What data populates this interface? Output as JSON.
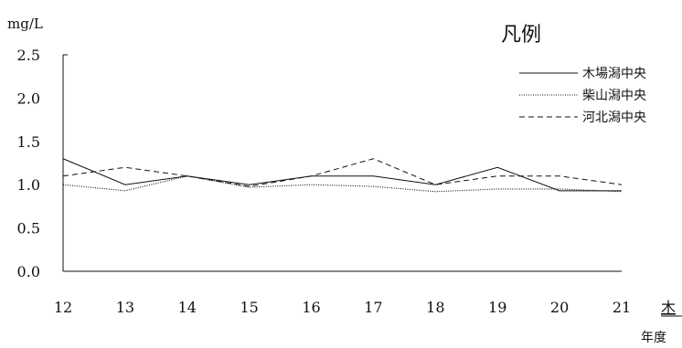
{
  "chart_data": {
    "type": "line",
    "title": "",
    "xlabel": "年度",
    "ylabel": "mg/L",
    "x": [
      12,
      13,
      14,
      15,
      16,
      17,
      18,
      19,
      20,
      21
    ],
    "xlim": [
      12,
      21
    ],
    "ylim": [
      0.0,
      2.5
    ],
    "y_ticks": [
      "0.0",
      "0.5",
      "1.0",
      "1.5",
      "2.0",
      "2.5"
    ],
    "x_ticks": [
      "12",
      "13",
      "14",
      "15",
      "16",
      "17",
      "18",
      "19",
      "20",
      "21"
    ],
    "grid": false,
    "legend": {
      "title": "凡例",
      "placement": "top-right"
    },
    "series": [
      {
        "name": "木場潟中央",
        "style": "solid",
        "color": "#111111",
        "values": [
          1.3,
          1.0,
          1.1,
          1.0,
          1.1,
          1.1,
          1.0,
          1.2,
          0.93,
          0.93
        ]
      },
      {
        "name": "柴山潟中央",
        "style": "dotted",
        "color": "#111111",
        "values": [
          1.0,
          0.93,
          1.1,
          0.97,
          1.0,
          0.98,
          0.92,
          0.95,
          0.95,
          0.92
        ]
      },
      {
        "name": "河北潟中央",
        "style": "dashed",
        "color": "#111111",
        "values": [
          1.1,
          1.2,
          1.1,
          0.98,
          1.1,
          1.3,
          1.0,
          1.1,
          1.1,
          1.0
        ]
      }
    ],
    "cutoff_text": "木"
  }
}
